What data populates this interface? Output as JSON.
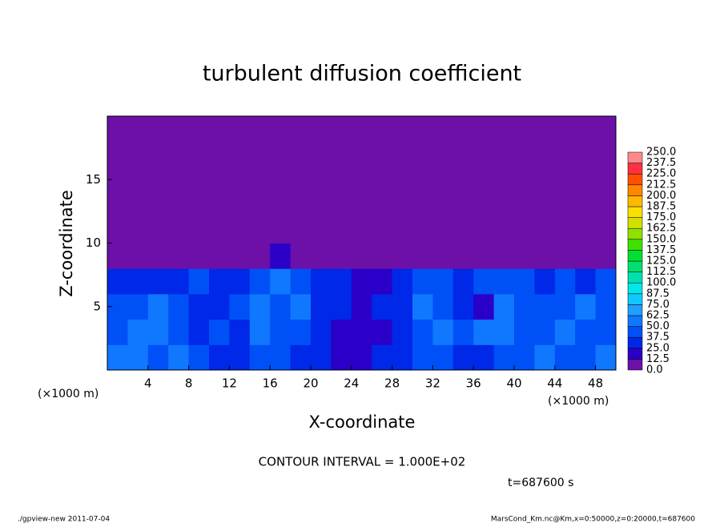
{
  "chart_data": {
    "type": "heatmap",
    "title": "turbulent diffusion coefficient",
    "x_label": "X-coordinate",
    "y_label": "Z-coordinate",
    "x_unit": "(×1000 m)",
    "y_unit": "(×1000 m)",
    "contour_note": "CONTOUR INTERVAL = 1.000E+02",
    "time_label": "t=687600 s",
    "footer_left": "./gpview-new  2011-07-04",
    "footer_right": "MarsCond_Km.nc@Km,x=0:50000,z=0:20000,t=687600",
    "xlim": [
      0,
      50
    ],
    "ylim": [
      0,
      20
    ],
    "xticks": [
      4,
      8,
      12,
      16,
      20,
      24,
      28,
      32,
      36,
      40,
      44,
      48
    ],
    "yticks": [
      5,
      10,
      15
    ],
    "xbins": [
      0,
      2,
      4,
      6,
      8,
      10,
      12,
      14,
      16,
      18,
      20,
      22,
      24,
      26,
      28,
      30,
      32,
      34,
      36,
      38,
      40,
      42,
      44,
      46,
      48,
      50
    ],
    "ybins": [
      0,
      2,
      4,
      6,
      8,
      10,
      12,
      14,
      16,
      18,
      20
    ],
    "values": [
      [
        50,
        55,
        45,
        60,
        40,
        35,
        30,
        40,
        45,
        30,
        25,
        20,
        20,
        25,
        30,
        45,
        40,
        30,
        35,
        40,
        45,
        50,
        40,
        45,
        50
      ],
      [
        45,
        50,
        55,
        40,
        35,
        45,
        30,
        50,
        40,
        45,
        30,
        20,
        15,
        20,
        25,
        40,
        50,
        45,
        55,
        50,
        45,
        40,
        50,
        45,
        40
      ],
      [
        40,
        45,
        50,
        40,
        30,
        35,
        40,
        55,
        45,
        50,
        35,
        25,
        20,
        25,
        30,
        55,
        45,
        25,
        20,
        50,
        45,
        40,
        45,
        50,
        45
      ],
      [
        35,
        30,
        25,
        30,
        40,
        35,
        30,
        45,
        50,
        40,
        35,
        25,
        20,
        20,
        30,
        45,
        40,
        35,
        40,
        45,
        40,
        35,
        40,
        35,
        40
      ],
      [
        5,
        5,
        3,
        5,
        5,
        3,
        5,
        8,
        15,
        5,
        2,
        1,
        1,
        1,
        2,
        3,
        2,
        1,
        2,
        3,
        4,
        3,
        5,
        3,
        2
      ],
      [
        8,
        3,
        5,
        3,
        2,
        4,
        10,
        5,
        12,
        5,
        3,
        2,
        2,
        3,
        4,
        2,
        3,
        2,
        4,
        3,
        3,
        5,
        8,
        6,
        3
      ],
      [
        2,
        1,
        2,
        3,
        5,
        3,
        8,
        10,
        5,
        3,
        2,
        1,
        2,
        2,
        3,
        2,
        1,
        2,
        1,
        2,
        1,
        5,
        6,
        3,
        2
      ],
      [
        0,
        0,
        1,
        2,
        1,
        3,
        4,
        8,
        3,
        1,
        1,
        0,
        0,
        1,
        2,
        1,
        1,
        0,
        1,
        1,
        0,
        2,
        1,
        1,
        0
      ],
      [
        0,
        0,
        0,
        0,
        0,
        1,
        0,
        1,
        0,
        0,
        0,
        0,
        0,
        0,
        0,
        0,
        0,
        0,
        0,
        0,
        0,
        0,
        0,
        0,
        0
      ],
      [
        0,
        0,
        0,
        0,
        0,
        0,
        0,
        0,
        0,
        0,
        0,
        0,
        0,
        0,
        0,
        0,
        0,
        0,
        0,
        0,
        0,
        0,
        0,
        0,
        0
      ]
    ],
    "levels": [
      {
        "value": 0,
        "label": "0.0"
      },
      {
        "value": 12.5,
        "label": "12.5"
      },
      {
        "value": 25,
        "label": "25.0"
      },
      {
        "value": 37.5,
        "label": "37.5"
      },
      {
        "value": 50,
        "label": "50.0"
      },
      {
        "value": 62.5,
        "label": "62.5"
      },
      {
        "value": 75,
        "label": "75.0"
      },
      {
        "value": 87.5,
        "label": "87.5"
      },
      {
        "value": 100,
        "label": "100.0"
      },
      {
        "value": 112.5,
        "label": "112.5"
      },
      {
        "value": 125,
        "label": "125.0"
      },
      {
        "value": 137.5,
        "label": "137.5"
      },
      {
        "value": 150,
        "label": "150.0"
      },
      {
        "value": 162.5,
        "label": "162.5"
      },
      {
        "value": 175,
        "label": "175.0"
      },
      {
        "value": 187.5,
        "label": "187.5"
      },
      {
        "value": 200,
        "label": "200.0"
      },
      {
        "value": 212.5,
        "label": "212.5"
      },
      {
        "value": 225,
        "label": "225.0"
      },
      {
        "value": 237.5,
        "label": "237.5"
      },
      {
        "value": 250,
        "label": "250.0"
      }
    ],
    "colors": [
      "#6c10a8",
      "#2a00c8",
      "#0028e8",
      "#0050f8",
      "#1078ff",
      "#20a0ff",
      "#10c8ff",
      "#00e8e8",
      "#00e0b0",
      "#00e070",
      "#00e030",
      "#40e000",
      "#90e000",
      "#d0e000",
      "#f8e000",
      "#ffb800",
      "#ff8800",
      "#ff5000",
      "#ff3040",
      "#ff8888"
    ]
  }
}
